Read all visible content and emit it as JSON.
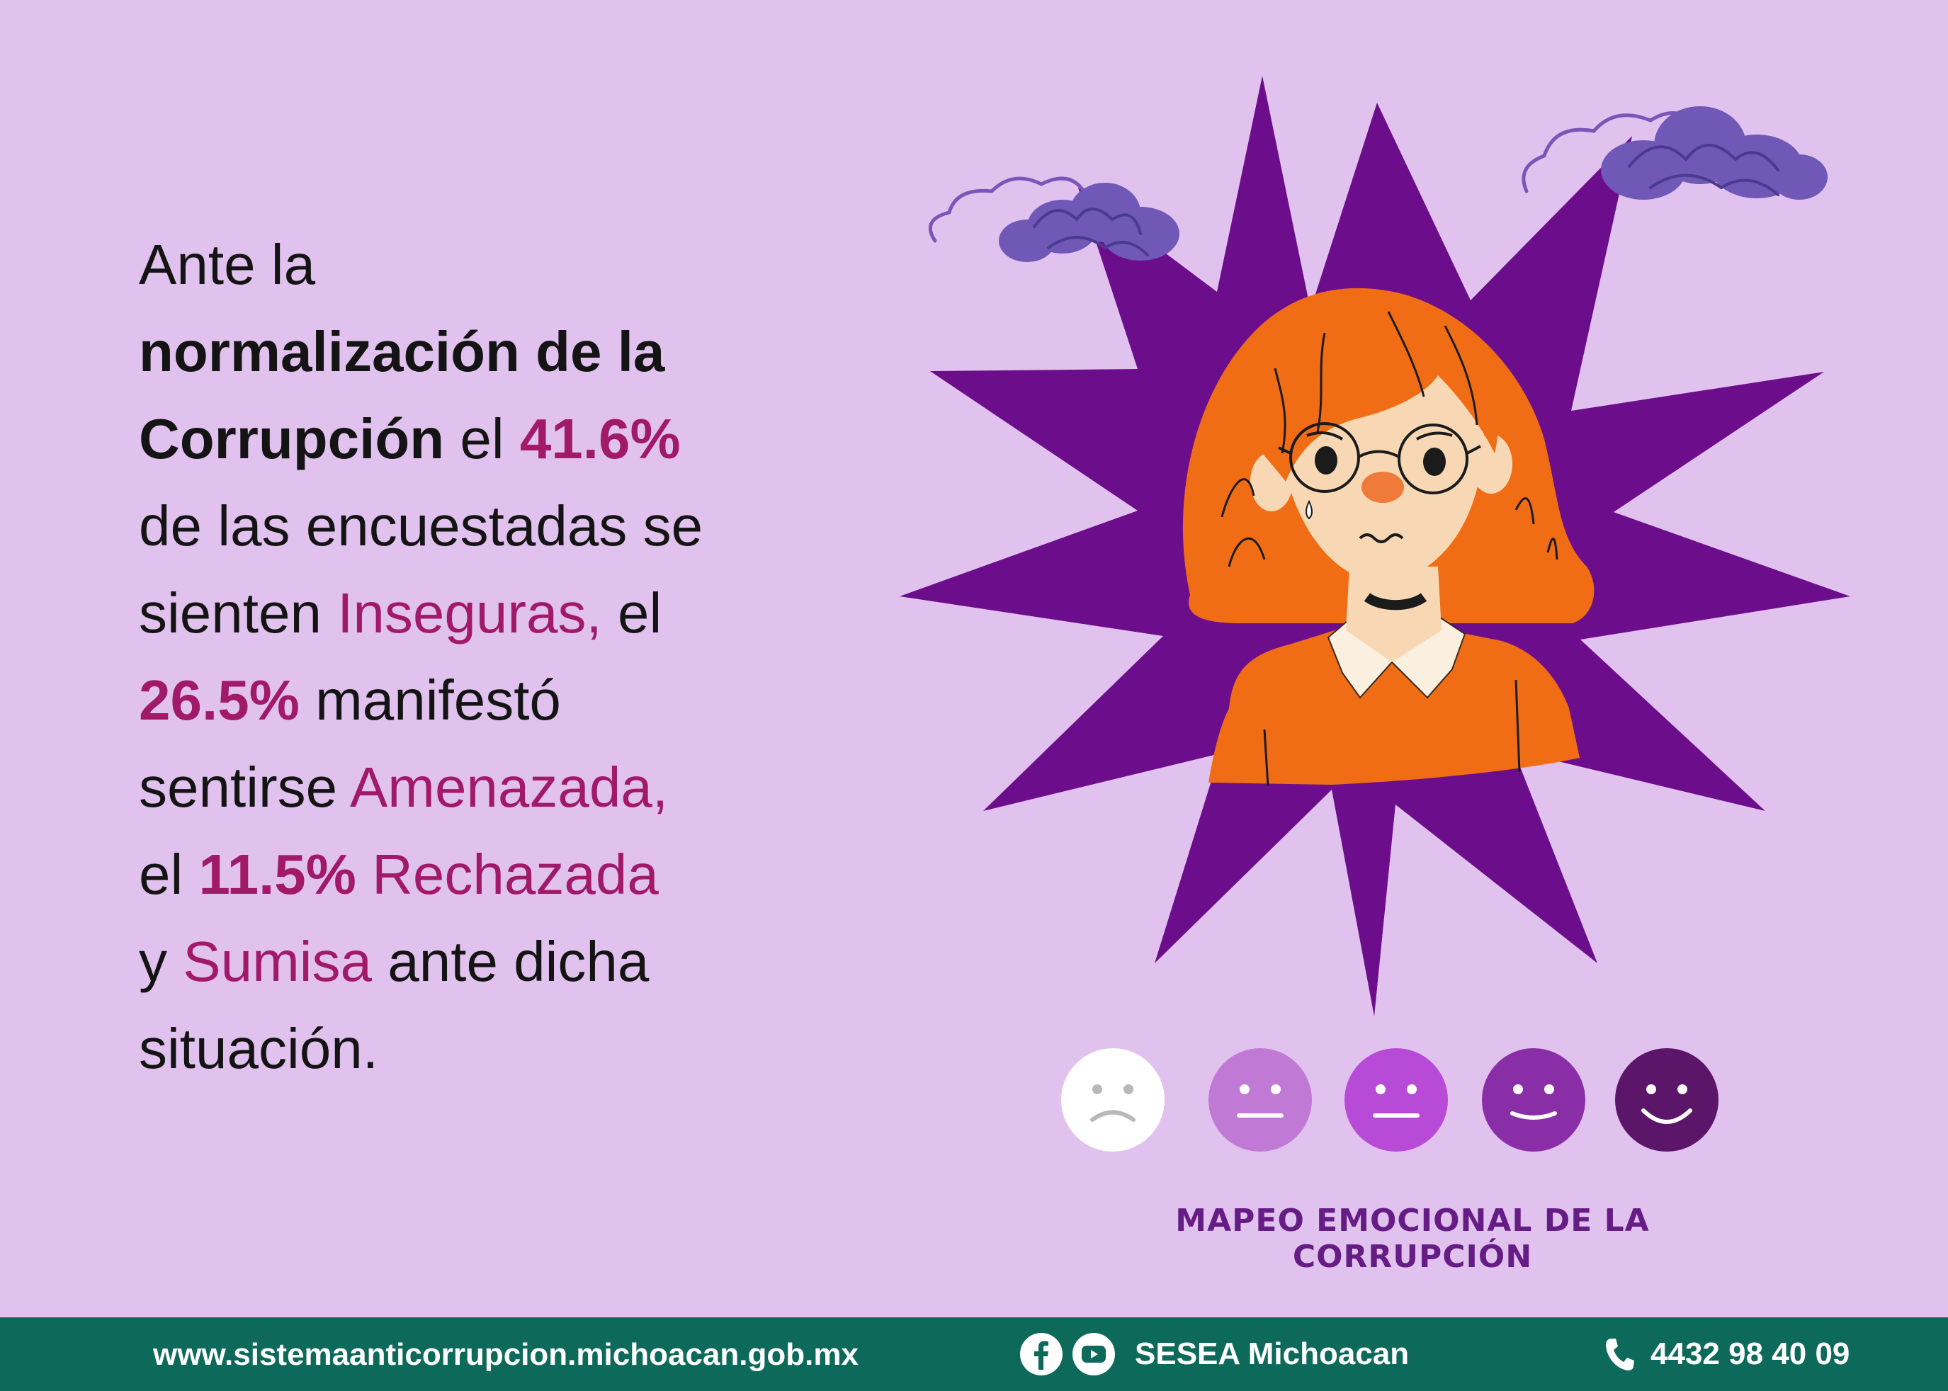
{
  "paragraph": {
    "l1": "Ante la",
    "l2": "normalización de la",
    "l3_bold": "Corrupción",
    "l3_el": " el ",
    "l3_pct": "41.6%",
    "l4": "de las encuestadas se",
    "l5_a": "sienten ",
    "l5_acc": "Inseguras,",
    "l5_b": " el",
    "l6_pct": "26.5%",
    "l6_b": " manifestó",
    "l7_a": "sentirse ",
    "l7_acc": "Amenazada,",
    "l8_a": "el ",
    "l8_pct": "11.5%",
    "l8_acc": " Rechazada",
    "l9_a": "y ",
    "l9_acc": "Sumisa",
    "l9_b": " ante dicha",
    "l10": "situación."
  },
  "emotion_scale": {
    "faces": [
      {
        "icon": "sad-face-icon",
        "color": "#ffffff"
      },
      {
        "icon": "neutral-face-icon",
        "color": "#c07ad6"
      },
      {
        "icon": "neutral-face-icon",
        "color": "#b74bd8"
      },
      {
        "icon": "smile-face-icon",
        "color": "#8a2ea8"
      },
      {
        "icon": "happy-face-icon",
        "color": "#5b1669"
      }
    ]
  },
  "caption": "MAPEO EMOCIONAL DE LA CORRUPCIÓN",
  "footer": {
    "website": "www.sistemaanticorrupcion.michoacan.gob.mx",
    "social_name": "SESEA Michoacan",
    "phone": "4432 98 40 09"
  },
  "colors": {
    "background": "#e1c2ee",
    "accent": "#a01a68",
    "star": "#6c0e8c",
    "hair": "#f06d15",
    "footer_bar": "#0d6a5a"
  }
}
